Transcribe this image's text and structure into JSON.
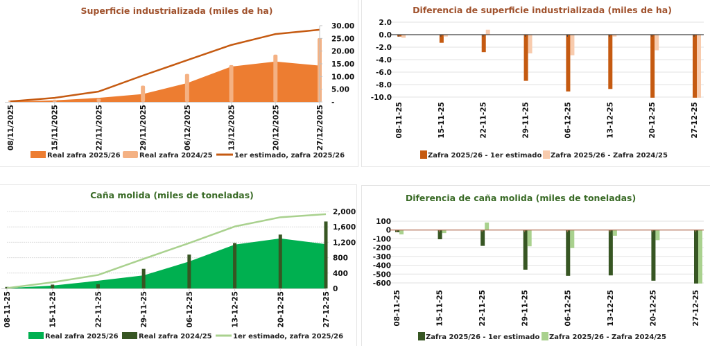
{
  "chart_data": [
    {
      "type": "area",
      "title": "Superficie industrializada (miles de ha)",
      "categories": [
        "08/11/2025",
        "15/11/2025",
        "22/11/2025",
        "29/11/2025",
        "06/12/2025",
        "13/12/2025",
        "20/12/2025",
        "27/12/2025"
      ],
      "ylim": [
        0,
        30
      ],
      "yticks": [
        "-",
        "5.00",
        "10.00",
        "15.00",
        "20.00",
        "25.00",
        "30.00"
      ],
      "ytick_values": [
        0,
        5,
        10,
        15,
        20,
        25,
        30
      ],
      "y_axis_side": "right",
      "grid": false,
      "legend_position": "bottom",
      "series": [
        {
          "name": "Real zafra 2025/26",
          "kind": "area",
          "color": "#ED7D31",
          "values": [
            0.2,
            0.6,
            1.6,
            3.1,
            7.4,
            13.9,
            15.9,
            14.3
          ]
        },
        {
          "name": "Real zafra 2024/25",
          "kind": "bar",
          "color": "#F4B183",
          "values": [
            0.6,
            0.9,
            1.3,
            6.4,
            11.0,
            14.5,
            18.6,
            25.1
          ]
        },
        {
          "name": "1er estimado, zafra 2025/26",
          "kind": "line",
          "color": "#C55A11",
          "values": [
            0.2,
            1.6,
            4.1,
            10.4,
            16.4,
            22.4,
            26.7,
            28.4
          ]
        }
      ]
    },
    {
      "type": "bar",
      "title": "Diferencia de superficie industrializada (miles de ha)",
      "categories": [
        "08-11-25",
        "15-11-25",
        "22-11-25",
        "29-11-25",
        "06-12-25",
        "13-12-25",
        "20-12-25",
        "27-12-25"
      ],
      "ylim": [
        -10,
        2
      ],
      "yticks": [
        "2.0",
        "0.0",
        "-2.0",
        "-4.0",
        "-6.0",
        "-8.0",
        "-10.0"
      ],
      "ytick_values": [
        2,
        0,
        -2,
        -4,
        -6,
        -8,
        -10
      ],
      "grid": true,
      "legend_position": "bottom",
      "series": [
        {
          "name": "Zafra 2025/26 - 1er estimado",
          "color": "#C55A11",
          "values": [
            -0.3,
            -1.3,
            -2.8,
            -7.4,
            -9.1,
            -8.7,
            -10.1,
            -10.1
          ]
        },
        {
          "name": "Zafra 2025/26 - Zafra 2024/25",
          "color": "#F8CBAD",
          "values": [
            -0.5,
            -0.3,
            0.8,
            -3.0,
            -3.3,
            -0.3,
            -2.5,
            -10.1
          ]
        }
      ]
    },
    {
      "type": "area",
      "title": "Caña molida (miles de toneladas)",
      "categories": [
        "08-11-25",
        "15-11-25",
        "22-11-25",
        "29-11-25",
        "06-12-25",
        "13-12-25",
        "20-12-25",
        "27-12-25"
      ],
      "ylim": [
        0,
        2000
      ],
      "yticks": [
        "0",
        "400",
        "800",
        "1,200",
        "1,600",
        "2,000"
      ],
      "ytick_values": [
        0,
        400,
        800,
        1200,
        1600,
        2000
      ],
      "y_axis_side": "right",
      "grid": true,
      "legend_position": "bottom",
      "series": [
        {
          "name": "Real zafra 2025/26",
          "kind": "area",
          "color": "#00B050",
          "values": [
            10,
            75,
            200,
            340,
            700,
            1140,
            1300,
            1150
          ]
        },
        {
          "name": "Real zafra 2024/25",
          "kind": "bar",
          "color": "#375623",
          "values": [
            40,
            100,
            110,
            510,
            880,
            1180,
            1400,
            1740
          ]
        },
        {
          "name": "1er estimado, zafra 2025/26",
          "kind": "line",
          "color": "#A9D18E",
          "values": [
            10,
            160,
            350,
            770,
            1180,
            1610,
            1850,
            1930
          ]
        }
      ]
    },
    {
      "type": "bar",
      "title": "Diferencia de caña molida (miles de toneladas)",
      "categories": [
        "08-11-25",
        "15-11-25",
        "22-11-25",
        "29-11-25",
        "06-12-25",
        "13-12-25",
        "20-12-25",
        "27-12-25"
      ],
      "ylim": [
        -600,
        100
      ],
      "yticks": [
        "100",
        "0",
        "-100",
        "-200",
        "-300",
        "-400",
        "-500",
        "-600"
      ],
      "ytick_values": [
        100,
        0,
        -100,
        -200,
        -300,
        -400,
        -500,
        -600
      ],
      "grid": true,
      "legend_position": "bottom",
      "series": [
        {
          "name": "Zafra 2025/26 - 1er estimado",
          "color": "#375623",
          "values": [
            -25,
            -105,
            -180,
            -450,
            -520,
            -515,
            -575,
            -610
          ]
        },
        {
          "name": "Zafra 2025/26 - Zafra 2024/25",
          "color": "#A9D18E",
          "values": [
            -50,
            -35,
            85,
            -185,
            -205,
            -65,
            -115,
            -610
          ]
        }
      ]
    }
  ],
  "colors": {
    "title_orange": "#A0522D",
    "title_green": "#3A6B27",
    "zero_line_orange": "#404040",
    "zero_line_green": "#B5735A"
  }
}
